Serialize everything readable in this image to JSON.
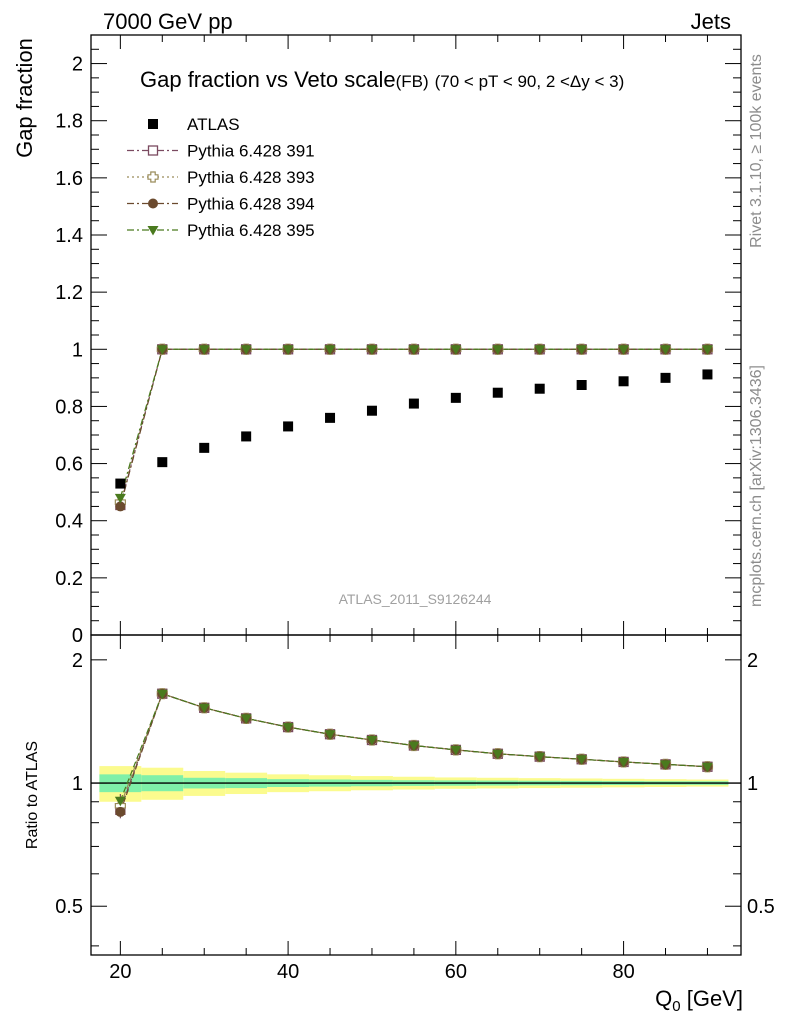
{
  "header": {
    "left": "7000 GeV pp",
    "right": "Jets"
  },
  "side_text": {
    "rivet": "Rivet 3.1.10, ≥ 100k events",
    "mcplots": "mcplots.cern.ch [arXiv:1306.3436]"
  },
  "watermark": "ATLAS_2011_S9126244",
  "chart_data": [
    {
      "type": "scatter",
      "title": "Gap fraction vs Veto scale",
      "title_tag": "(FB)",
      "title_cut": "(70 < pT <  90, 2 <Δy < 3)",
      "ylabel": "Gap fraction",
      "xlabel": "",
      "xlim": [
        16.5,
        94
      ],
      "ylim": [
        0,
        2.1
      ],
      "yticks": [
        0,
        0.2,
        0.4,
        0.6,
        0.8,
        1,
        1.2,
        1.4,
        1.6,
        1.8,
        2
      ],
      "ytick_labels": [
        "0",
        "0.2",
        "0.4",
        "0.6",
        "0.8",
        "1",
        "1.2",
        "1.4",
        "1.6",
        "1.8",
        "2"
      ],
      "legend_position": "top-left",
      "x": [
        20,
        25,
        30,
        35,
        40,
        45,
        50,
        55,
        60,
        65,
        70,
        75,
        80,
        85,
        90
      ],
      "series": [
        {
          "name": "ATLAS",
          "marker": "square-filled",
          "color": "#000000",
          "values": [
            0.53,
            0.605,
            0.655,
            0.695,
            0.73,
            0.76,
            0.785,
            0.81,
            0.83,
            0.848,
            0.862,
            0.875,
            0.888,
            0.9,
            0.912
          ]
        },
        {
          "name": "Pythia 6.428 391",
          "marker": "square-open",
          "color": "#7b4a60",
          "line": "dash-dot",
          "values": [
            0.455,
            1,
            1,
            1,
            1,
            1,
            1,
            1,
            1,
            1,
            1,
            1,
            1,
            1,
            1
          ]
        },
        {
          "name": "Pythia 6.428 393",
          "marker": "cross-open",
          "color": "#9a8c5a",
          "line": "dot",
          "values": [
            0.465,
            1,
            1,
            1,
            1,
            1,
            1,
            1,
            1,
            1,
            1,
            1,
            1,
            1,
            1
          ]
        },
        {
          "name": "Pythia 6.428 394",
          "marker": "circle-filled",
          "color": "#6b4a2e",
          "line": "dash-dot",
          "values": [
            0.45,
            1,
            1,
            1,
            1,
            1,
            1,
            1,
            1,
            1,
            1,
            1,
            1,
            1,
            1
          ]
        },
        {
          "name": "Pythia 6.428 395",
          "marker": "triangle-down-filled",
          "color": "#4a7a1e",
          "line": "dash-dot",
          "values": [
            0.48,
            1,
            1,
            1,
            1,
            1,
            1,
            1,
            1,
            1,
            1,
            1,
            1,
            1,
            1
          ]
        }
      ]
    },
    {
      "type": "scatter",
      "title": "",
      "ylabel": "Ratio to ATLAS",
      "xlabel": "Q",
      "xlabel_sub": "0",
      "xlabel_unit": " [GeV]",
      "xlim": [
        16.5,
        94
      ],
      "ylim": [
        0.38,
        2.3
      ],
      "yscale": "log",
      "xticks": [
        20,
        40,
        60,
        80
      ],
      "xtick_labels": [
        "20",
        "40",
        "60",
        "80"
      ],
      "yticks": [
        0.5,
        1,
        2
      ],
      "ytick_labels": [
        "0.5",
        "1",
        "2"
      ],
      "x": [
        20,
        25,
        30,
        35,
        40,
        45,
        50,
        55,
        60,
        65,
        70,
        75,
        80,
        85,
        90
      ],
      "band_edges": [
        17.5,
        22.5,
        27.5,
        32.5,
        37.5,
        42.5,
        47.5,
        52.5,
        57.5,
        62.5,
        67.5,
        72.5,
        77.5,
        82.5,
        87.5,
        92.5
      ],
      "band_inner": [
        0.05,
        0.045,
        0.03,
        0.028,
        0.022,
        0.02,
        0.018,
        0.016,
        0.015,
        0.014,
        0.013,
        0.012,
        0.011,
        0.01,
        0.01
      ],
      "band_outer": [
        0.1,
        0.09,
        0.07,
        0.06,
        0.05,
        0.045,
        0.04,
        0.036,
        0.032,
        0.03,
        0.028,
        0.026,
        0.024,
        0.022,
        0.02
      ],
      "band_colors": {
        "inner": "#7ff0a8",
        "outer": "#fbfb8e"
      },
      "series": [
        {
          "name": "Pythia 6.428 391",
          "marker": "square-open",
          "color": "#7b4a60",
          "values": [
            0.86,
            1.653,
            1.527,
            1.439,
            1.37,
            1.316,
            1.274,
            1.235,
            1.205,
            1.179,
            1.16,
            1.143,
            1.126,
            1.111,
            1.096
          ]
        },
        {
          "name": "Pythia 6.428 393",
          "marker": "cross-open",
          "color": "#9a8c5a",
          "values": [
            0.88,
            1.653,
            1.527,
            1.439,
            1.37,
            1.316,
            1.274,
            1.235,
            1.205,
            1.179,
            1.16,
            1.143,
            1.126,
            1.111,
            1.096
          ]
        },
        {
          "name": "Pythia 6.428 394",
          "marker": "circle-filled",
          "color": "#6b4a2e",
          "values": [
            0.85,
            1.653,
            1.527,
            1.439,
            1.37,
            1.316,
            1.274,
            1.235,
            1.205,
            1.179,
            1.16,
            1.143,
            1.126,
            1.111,
            1.096
          ]
        },
        {
          "name": "Pythia 6.428 395",
          "marker": "triangle-down-filled",
          "color": "#4a7a1e",
          "values": [
            0.905,
            1.653,
            1.527,
            1.439,
            1.37,
            1.316,
            1.274,
            1.235,
            1.205,
            1.179,
            1.16,
            1.143,
            1.126,
            1.111,
            1.096
          ]
        }
      ]
    }
  ]
}
